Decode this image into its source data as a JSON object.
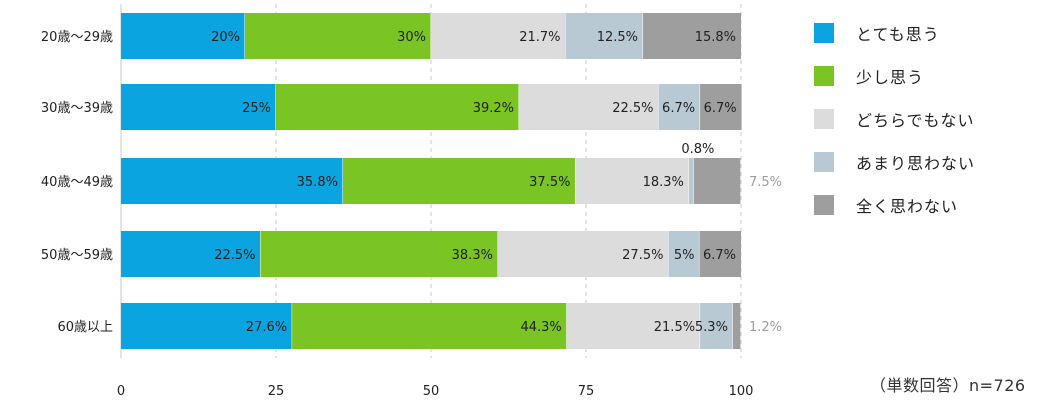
{
  "chart_data": {
    "type": "bar",
    "orientation": "horizontal",
    "stacked": true,
    "categories": [
      "20歳〜29歳",
      "30歳〜39歳",
      "40歳〜49歳",
      "50歳〜59歳",
      "60歳以上"
    ],
    "series": [
      {
        "name": "とても思う",
        "color": "#0aa5e0",
        "values": [
          20,
          25,
          35.8,
          22.5,
          27.6
        ],
        "labels": [
          "20%",
          "25%",
          "35.8%",
          "22.5%",
          "27.6%"
        ]
      },
      {
        "name": "少し思う",
        "color": "#7ac423",
        "values": [
          30,
          39.2,
          37.5,
          38.3,
          44.3
        ],
        "labels": [
          "30%",
          "39.2%",
          "37.5%",
          "38.3%",
          "44.3%"
        ]
      },
      {
        "name": "どちらでもない",
        "color": "#dcdcdc",
        "values": [
          21.7,
          22.5,
          18.3,
          27.5,
          21.5
        ],
        "labels": [
          "21.7%",
          "22.5%",
          "18.3%",
          "27.5%",
          "21.5%"
        ]
      },
      {
        "name": "あまり思わない",
        "color": "#b8c9d3",
        "values": [
          12.5,
          6.7,
          0.8,
          5,
          5.3
        ],
        "labels": [
          "12.5%",
          "6.7%",
          "0.8%",
          "5%",
          "5.3%"
        ]
      },
      {
        "name": "全く思わない",
        "color": "#9e9e9e",
        "values": [
          15.8,
          6.7,
          7.5,
          6.7,
          1.2
        ],
        "labels": [
          "15.8%",
          "6.7%",
          "7.5%",
          "6.7%",
          "1.2%"
        ]
      }
    ],
    "xlim": [
      0,
      100
    ],
    "xticks": [
      "0",
      "25",
      "50",
      "75",
      "100"
    ],
    "grid": true,
    "legend_position": "right"
  },
  "note": "（単数回答）n=726"
}
